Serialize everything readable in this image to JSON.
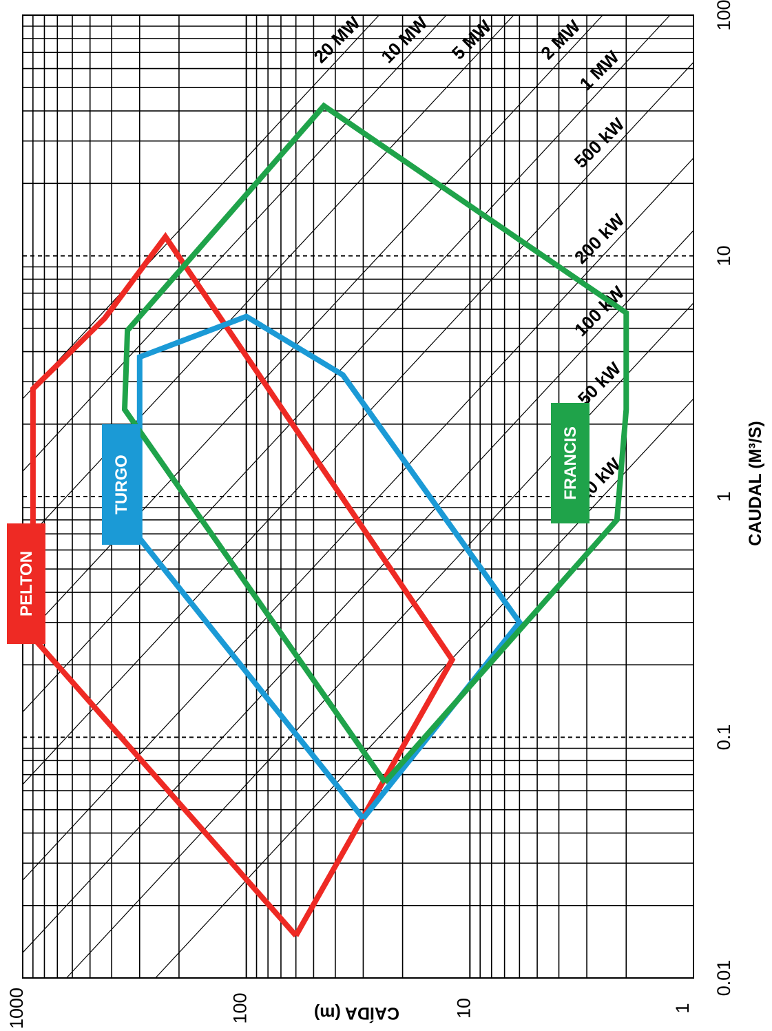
{
  "chart_data": {
    "type": "area",
    "title": "",
    "xlabel": "CAUDAL (M³/S)",
    "ylabel": "CAÍDA (m)",
    "x_scale": "log",
    "y_scale": "log",
    "xlim": [
      0.01,
      100
    ],
    "ylim": [
      1,
      1000
    ],
    "x_ticks": [
      "0.01",
      "0.1",
      "1",
      "10",
      "100"
    ],
    "y_ticks": [
      "1",
      "10",
      "100",
      "1000"
    ],
    "grid": true,
    "power_lines": [
      {
        "label": "20 kW",
        "kw": 20
      },
      {
        "label": "50 kW",
        "kw": 50
      },
      {
        "label": "100 kW",
        "kw": 100
      },
      {
        "label": "200 kW",
        "kw": 200
      },
      {
        "label": "500 kW",
        "kw": 500
      },
      {
        "label": "1 MW",
        "kw": 1000
      },
      {
        "label": "2 MW",
        "kw": 2000
      },
      {
        "label": "5 MW",
        "kw": 5000
      },
      {
        "label": "10 MW",
        "kw": 10000
      },
      {
        "label": "20 MW",
        "kw": 20000
      }
    ],
    "series": [
      {
        "name": "PELTON",
        "color": "#ee2a24",
        "points": [
          [
            0.015,
            60
          ],
          [
            0.26,
            900
          ],
          [
            2.8,
            900
          ],
          [
            5.5,
            430
          ],
          [
            12,
            230
          ],
          [
            0.21,
            12
          ],
          [
            0.015,
            60
          ]
        ]
      },
      {
        "name": "TURGO",
        "color": "#1b9ad6",
        "points": [
          [
            0.046,
            30
          ],
          [
            0.67,
            300
          ],
          [
            3.8,
            300
          ],
          [
            5.6,
            100
          ],
          [
            3.2,
            37
          ],
          [
            0.3,
            6
          ],
          [
            0.046,
            30
          ]
        ]
      },
      {
        "name": "FRANCIS",
        "color": "#1fa34a",
        "points": [
          [
            0.065,
            24
          ],
          [
            2.3,
            350
          ],
          [
            4.9,
            340
          ],
          [
            42,
            45
          ],
          [
            5.8,
            2
          ],
          [
            2.3,
            2
          ],
          [
            0.8,
            2.2
          ],
          [
            0.065,
            24
          ]
        ]
      }
    ]
  }
}
